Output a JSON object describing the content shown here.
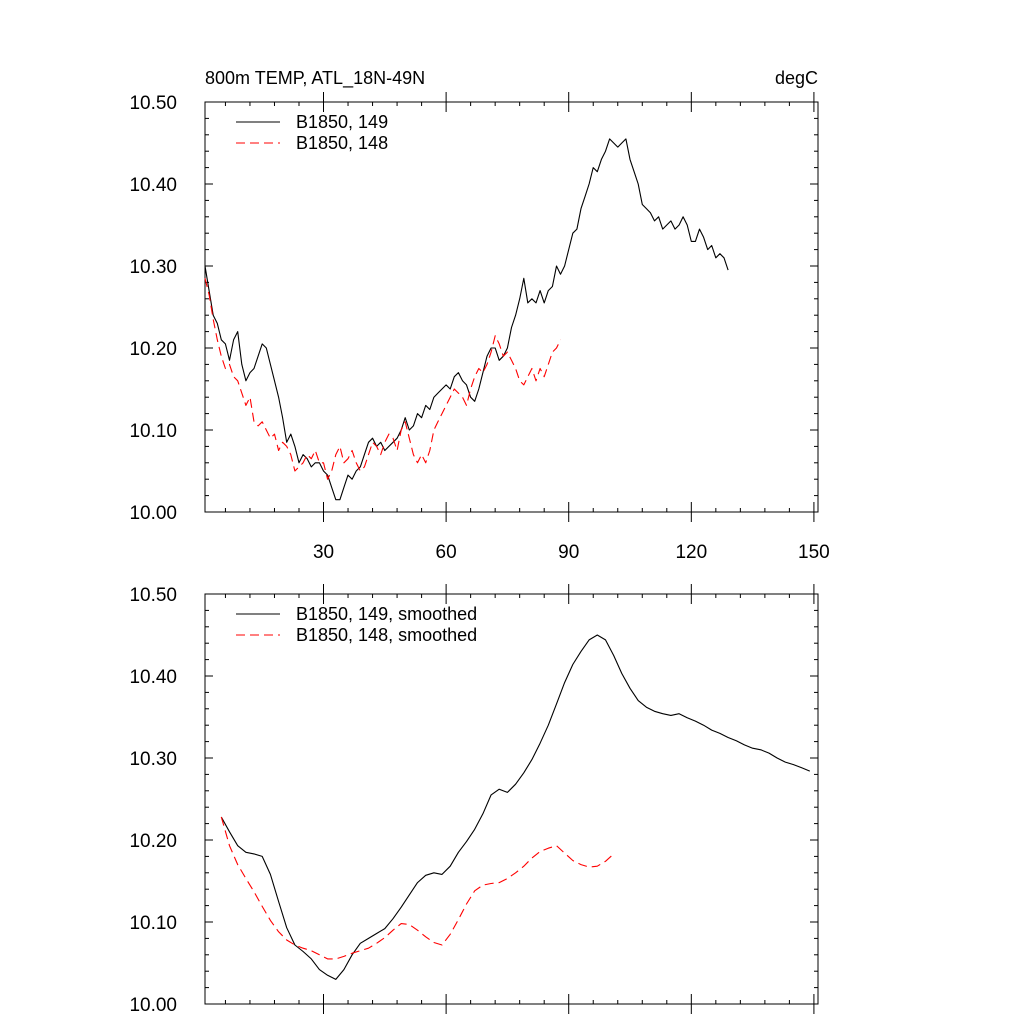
{
  "chart_data": [
    {
      "type": "line",
      "title": "800m TEMP, ATL_18N-49N",
      "units": "degC",
      "xlabel": "",
      "ylabel": "",
      "xlim": [
        1,
        151
      ],
      "ylim": [
        10.0,
        10.5
      ],
      "x_ticks": [
        30,
        60,
        90,
        120,
        150
      ],
      "x_tick_labels": [
        "30",
        "60",
        "90",
        "120",
        "150"
      ],
      "y_ticks": [
        10.0,
        10.1,
        10.2,
        10.3,
        10.4,
        10.5
      ],
      "y_tick_labels": [
        "10.00",
        "10.10",
        "10.20",
        "10.30",
        "10.40",
        "10.50"
      ],
      "grid": false,
      "legend_position": "top-left",
      "series": [
        {
          "name": "B1850, 149",
          "color": "#000000",
          "dash": "solid",
          "x_start": 1,
          "values": [
            10.3,
            10.27,
            10.24,
            10.23,
            10.21,
            10.205,
            10.185,
            10.21,
            10.22,
            10.18,
            10.16,
            10.17,
            10.175,
            10.19,
            10.205,
            10.2,
            10.18,
            10.16,
            10.14,
            10.115,
            10.085,
            10.095,
            10.08,
            10.06,
            10.07,
            10.065,
            10.055,
            10.06,
            10.06,
            10.05,
            10.045,
            10.03,
            10.015,
            10.015,
            10.03,
            10.045,
            10.04,
            10.05,
            10.055,
            10.07,
            10.085,
            10.09,
            10.08,
            10.085,
            10.075,
            10.08,
            10.085,
            10.09,
            10.1,
            10.115,
            10.1,
            10.105,
            10.12,
            10.115,
            10.13,
            10.125,
            10.14,
            10.145,
            10.15,
            10.155,
            10.15,
            10.165,
            10.17,
            10.16,
            10.155,
            10.14,
            10.135,
            10.15,
            10.17,
            10.19,
            10.2,
            10.2,
            10.185,
            10.19,
            10.2,
            10.225,
            10.24,
            10.26,
            10.285,
            10.255,
            10.26,
            10.255,
            10.27,
            10.255,
            10.27,
            10.275,
            10.3,
            10.29,
            10.3,
            10.32,
            10.34,
            10.345,
            10.37,
            10.385,
            10.4,
            10.42,
            10.415,
            10.43,
            10.44,
            10.455,
            10.45,
            10.445,
            10.45,
            10.455,
            10.43,
            10.415,
            10.4,
            10.375,
            10.37,
            10.365,
            10.355,
            10.36,
            10.345,
            10.35,
            10.355,
            10.345,
            10.35,
            10.36,
            10.35,
            10.33,
            10.33,
            10.345,
            10.335,
            10.32,
            10.325,
            10.31,
            10.315,
            10.31,
            10.295
          ]
        },
        {
          "name": "B1850, 148",
          "color": "#ff0000",
          "dash": "dashed",
          "x_start": 1,
          "values": [
            10.285,
            10.265,
            10.235,
            10.21,
            10.19,
            10.175,
            10.18,
            10.165,
            10.16,
            10.145,
            10.13,
            10.14,
            10.11,
            10.105,
            10.11,
            10.1,
            10.09,
            10.095,
            10.075,
            10.085,
            10.08,
            10.07,
            10.05,
            10.055,
            10.06,
            10.07,
            10.065,
            10.075,
            10.06,
            10.06,
            10.04,
            10.05,
            10.07,
            10.08,
            10.06,
            10.065,
            10.075,
            10.06,
            10.05,
            10.055,
            10.07,
            10.085,
            10.08,
            10.07,
            10.085,
            10.095,
            10.09,
            10.075,
            10.1,
            10.11,
            10.09,
            10.07,
            10.06,
            10.07,
            10.06,
            10.075,
            10.1,
            10.11,
            10.12,
            10.13,
            10.14,
            10.15,
            10.145,
            10.14,
            10.13,
            10.15,
            10.165,
            10.175,
            10.17,
            10.18,
            10.195,
            10.215,
            10.205,
            10.19,
            10.195,
            10.185,
            10.175,
            10.16,
            10.155,
            10.165,
            10.175,
            10.16,
            10.175,
            10.165,
            10.18,
            10.195,
            10.2,
            10.21
          ]
        }
      ]
    },
    {
      "type": "line",
      "title": "",
      "xlabel": "",
      "ylabel": "",
      "xlim": [
        1,
        151
      ],
      "ylim": [
        10.0,
        10.5
      ],
      "x_ticks": [
        30,
        60,
        90,
        120,
        150
      ],
      "y_ticks": [
        10.0,
        10.1,
        10.2,
        10.3,
        10.4,
        10.5
      ],
      "y_tick_labels": [
        "10.00",
        "10.10",
        "10.20",
        "10.30",
        "10.40",
        "10.50"
      ],
      "grid": false,
      "legend_position": "top-left",
      "series": [
        {
          "name": "B1850, 149, smoothed",
          "color": "#000000",
          "dash": "solid",
          "x": [
            5,
            7,
            9,
            11,
            13,
            15,
            17,
            19,
            21,
            23,
            25,
            27,
            29,
            31,
            33,
            35,
            37,
            39,
            41,
            43,
            45,
            47,
            49,
            51,
            53,
            55,
            57,
            59,
            61,
            63,
            65,
            67,
            69,
            71,
            73,
            75,
            77,
            79,
            81,
            83,
            85,
            87,
            89,
            91,
            93,
            95,
            97,
            99,
            101,
            103,
            105,
            107,
            109,
            111,
            113,
            115,
            117,
            119,
            121,
            123,
            125,
            127,
            129,
            131,
            133,
            135,
            137,
            139,
            141,
            143,
            145,
            147,
            149
          ],
          "values": [
            10.228,
            10.21,
            10.193,
            10.185,
            10.183,
            10.18,
            10.158,
            10.125,
            10.093,
            10.072,
            10.064,
            10.055,
            10.042,
            10.035,
            10.03,
            10.042,
            10.06,
            10.074,
            10.08,
            10.086,
            10.092,
            10.104,
            10.118,
            10.133,
            10.148,
            10.157,
            10.16,
            10.158,
            10.168,
            10.185,
            10.198,
            10.213,
            10.232,
            10.255,
            10.262,
            10.258,
            10.268,
            10.282,
            10.298,
            10.318,
            10.34,
            10.366,
            10.392,
            10.414,
            10.43,
            10.444,
            10.45,
            10.444,
            10.425,
            10.403,
            10.385,
            10.37,
            10.362,
            10.357,
            10.354,
            10.352,
            10.354,
            10.349,
            10.345,
            10.34,
            10.334,
            10.33,
            10.325,
            10.321,
            10.316,
            10.312,
            10.31,
            10.306,
            10.3,
            10.295,
            10.292,
            10.288,
            10.284
          ]
        },
        {
          "name": "B1850, 148, smoothed",
          "color": "#ff0000",
          "dash": "dashed",
          "x": [
            5,
            7,
            9,
            11,
            13,
            15,
            17,
            19,
            21,
            23,
            25,
            27,
            29,
            31,
            33,
            35,
            37,
            39,
            41,
            43,
            45,
            47,
            49,
            51,
            53,
            55,
            57,
            59,
            61,
            63,
            65,
            67,
            69,
            71,
            73,
            75,
            77,
            79,
            81,
            83,
            85,
            87,
            89,
            91,
            93,
            95,
            97,
            99,
            101
          ],
          "values": [
            10.228,
            10.193,
            10.17,
            10.153,
            10.137,
            10.119,
            10.102,
            10.088,
            10.078,
            10.072,
            10.068,
            10.065,
            10.06,
            10.055,
            10.055,
            10.058,
            10.062,
            10.065,
            10.068,
            10.074,
            10.081,
            10.09,
            10.098,
            10.097,
            10.09,
            10.082,
            10.075,
            10.072,
            10.085,
            10.103,
            10.122,
            10.138,
            10.145,
            10.147,
            10.148,
            10.153,
            10.16,
            10.168,
            10.178,
            10.186,
            10.19,
            10.193,
            10.184,
            10.175,
            10.17,
            10.167,
            10.168,
            10.174,
            10.183
          ]
        }
      ]
    }
  ]
}
